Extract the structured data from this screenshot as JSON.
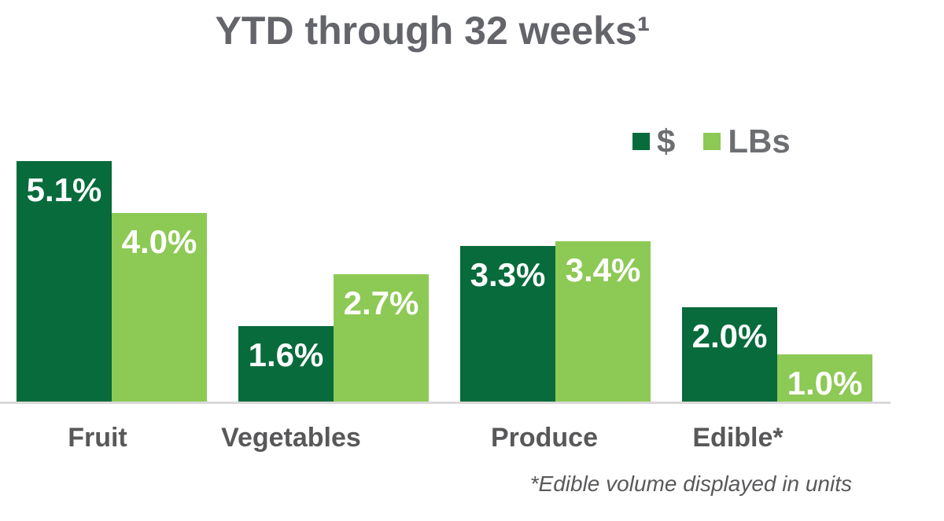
{
  "title": "YTD through 32 weeks¹",
  "footnote": "*Edible volume displayed in units",
  "colors": {
    "dollars_series": "#076B3B",
    "lbs_series": "#8DC955",
    "axis_line": "#D9D9D9",
    "title_text": "#64656A",
    "category_text": "#58585A",
    "legend_text": "#6D6E71",
    "value_label_text": "#FFFFFF"
  },
  "legend": {
    "items": [
      {
        "id": "dollars",
        "label": "$",
        "color": "#076B3B"
      },
      {
        "id": "lbs",
        "label": "LBs",
        "color": "#8DC955"
      }
    ]
  },
  "chart_data": {
    "type": "bar",
    "title": "YTD through 32 weeks¹",
    "categories": [
      "Fruit",
      "Vegetables",
      "Produce",
      "Edible*"
    ],
    "category_ids": [
      "fruit",
      "vegetables",
      "produce",
      "edible"
    ],
    "series": [
      {
        "id": "dollars",
        "name": "$",
        "color": "#076B3B",
        "values": [
          5.1,
          1.6,
          3.3,
          2.0
        ],
        "labels": [
          "5.1%",
          "1.6%",
          "3.3%",
          "2.0%"
        ]
      },
      {
        "id": "lbs",
        "name": "LBs",
        "color": "#8DC955",
        "values": [
          4.0,
          2.7,
          3.4,
          1.0
        ],
        "labels": [
          "4.0%",
          "2.7%",
          "3.4%",
          "1.0%"
        ]
      }
    ],
    "xlabel": "",
    "ylabel": "",
    "ylim": [
      0,
      5.5
    ],
    "grid": false,
    "y_axis_shown": false,
    "legend_position": "top-right",
    "value_format": "percent",
    "footnote": "*Edible volume displayed in units"
  }
}
